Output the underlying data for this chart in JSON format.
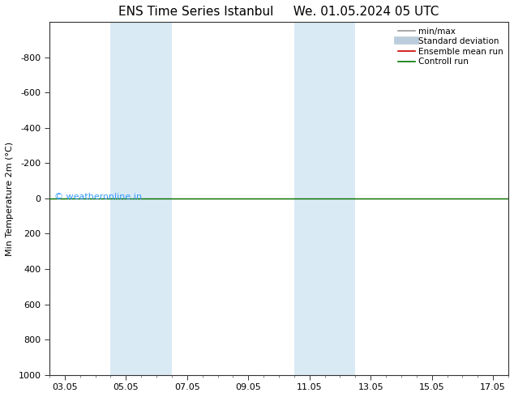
{
  "title_left": "ENS Time Series Istanbul",
  "title_right": "We. 01.05.2024 05 UTC",
  "ylabel": "Min Temperature 2m (°C)",
  "background_color": "#ffffff",
  "plot_bg_color": "#ffffff",
  "ylim_bottom": 1000,
  "ylim_top": -1000,
  "yticks": [
    -800,
    -600,
    -400,
    -200,
    0,
    200,
    400,
    600,
    800,
    1000
  ],
  "xtick_labels": [
    "03.05",
    "05.05",
    "07.05",
    "09.05",
    "11.05",
    "13.05",
    "15.05",
    "17.05"
  ],
  "xtick_values": [
    0,
    2,
    4,
    6,
    8,
    10,
    12,
    14
  ],
  "xlim_min": -0.5,
  "xlim_max": 14.5,
  "shaded_bands": [
    {
      "x_start": 1.5,
      "x_end": 2.0
    },
    {
      "x_start": 2.0,
      "x_end": 3.5
    },
    {
      "x_start": 7.5,
      "x_end": 8.5
    },
    {
      "x_start": 8.5,
      "x_end": 9.5
    }
  ],
  "shaded_color": "#daeaf5",
  "shaded_alpha": 1.0,
  "control_run_y": 0,
  "control_run_color": "#007700",
  "ensemble_mean_color": "#cc0000",
  "minmax_color": "#999999",
  "stddev_color": "#bbccdd",
  "watermark_text": "© weatheronline.in",
  "watermark_color": "#3399ff",
  "watermark_fontsize": 8,
  "legend_items": [
    {
      "label": "min/max",
      "color": "#999999",
      "lw": 1.2
    },
    {
      "label": "Standard deviation",
      "color": "#bbccdd",
      "lw": 7
    },
    {
      "label": "Ensemble mean run",
      "color": "#cc0000",
      "lw": 1.2
    },
    {
      "label": "Controll run",
      "color": "#007700",
      "lw": 1.2
    }
  ],
  "title_fontsize": 11,
  "tick_fontsize": 8,
  "ylabel_fontsize": 8,
  "legend_fontsize": 7.5,
  "figwidth": 6.34,
  "figheight": 4.9,
  "dpi": 100
}
